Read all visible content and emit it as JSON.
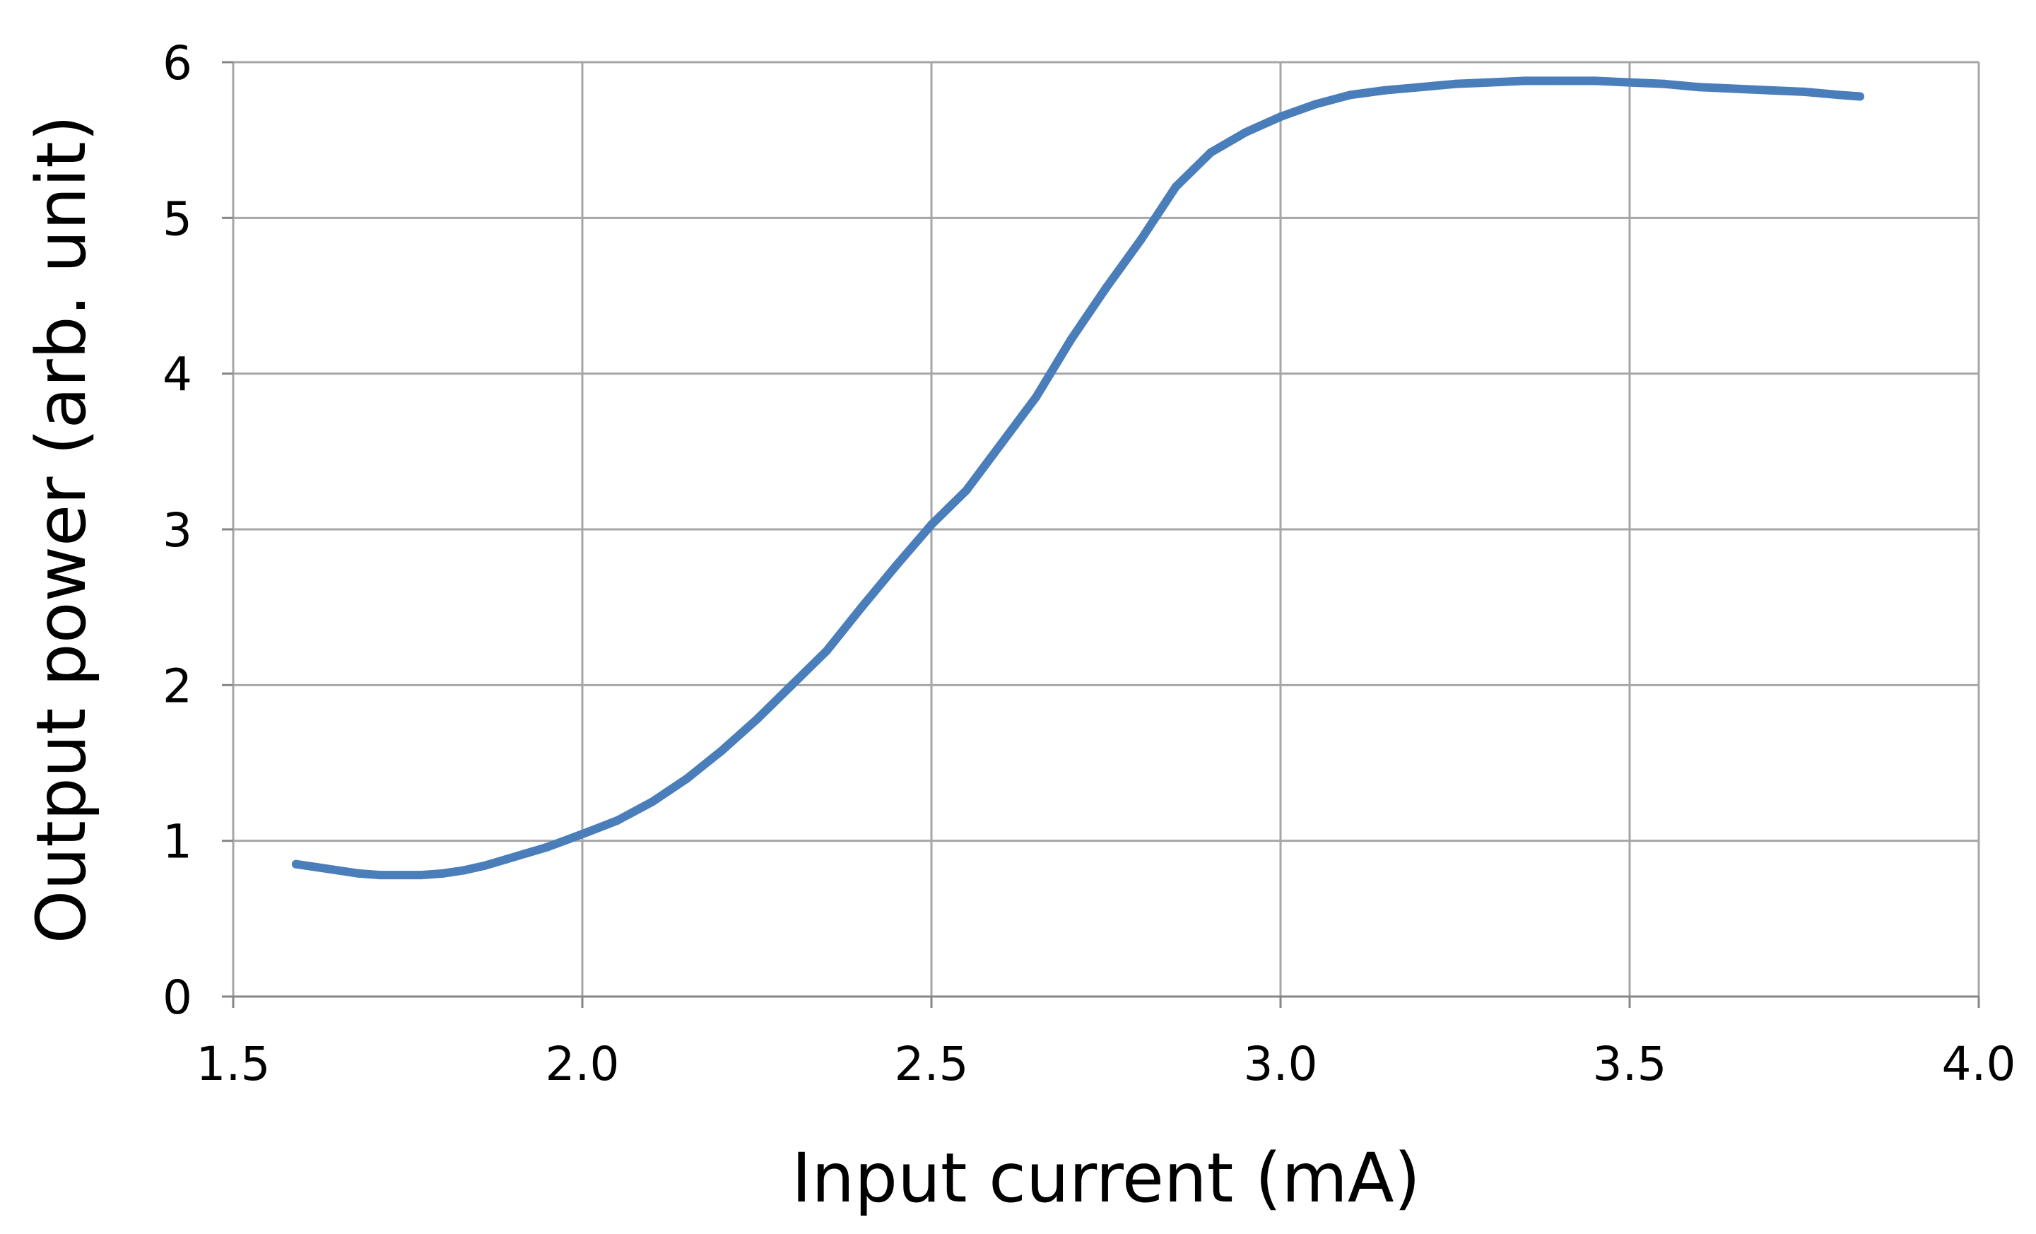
{
  "chart_data": {
    "type": "line",
    "title": "",
    "xlabel": "Input current (mA)",
    "ylabel": "Output power (arb. unit)",
    "xlim": [
      1.5,
      4.0
    ],
    "ylim": [
      0,
      6
    ],
    "xticks": [
      1.5,
      2.0,
      2.5,
      3.0,
      3.5,
      4.0
    ],
    "xtick_labels": [
      "1.5",
      "2.0",
      "2.5",
      "3.0",
      "3.5",
      "4.0"
    ],
    "yticks": [
      0,
      1,
      2,
      3,
      4,
      5,
      6
    ],
    "ytick_labels": [
      "0",
      "1",
      "2",
      "3",
      "4",
      "5",
      "6"
    ],
    "grid": true,
    "legend": "none",
    "series": [
      {
        "color": "#4a7ebb",
        "x": [
          1.59,
          1.62,
          1.65,
          1.68,
          1.71,
          1.74,
          1.77,
          1.8,
          1.83,
          1.86,
          1.89,
          1.92,
          1.95,
          1.98,
          2.01,
          2.05,
          2.1,
          2.15,
          2.2,
          2.25,
          2.3,
          2.35,
          2.4,
          2.45,
          2.5,
          2.55,
          2.6,
          2.65,
          2.7,
          2.75,
          2.8,
          2.85,
          2.9,
          2.95,
          3.0,
          3.05,
          3.1,
          3.15,
          3.2,
          3.25,
          3.3,
          3.35,
          3.4,
          3.45,
          3.5,
          3.55,
          3.6,
          3.65,
          3.7,
          3.75,
          3.8,
          3.83
        ],
        "y": [
          0.85,
          0.83,
          0.81,
          0.79,
          0.78,
          0.78,
          0.78,
          0.79,
          0.81,
          0.84,
          0.88,
          0.92,
          0.96,
          1.01,
          1.06,
          1.13,
          1.25,
          1.4,
          1.58,
          1.78,
          2.0,
          2.22,
          2.5,
          2.77,
          3.03,
          3.25,
          3.55,
          3.85,
          4.22,
          4.55,
          4.86,
          5.2,
          5.42,
          5.55,
          5.65,
          5.73,
          5.79,
          5.82,
          5.84,
          5.86,
          5.87,
          5.88,
          5.88,
          5.88,
          5.87,
          5.86,
          5.84,
          5.83,
          5.82,
          5.81,
          5.79,
          5.78
        ]
      }
    ]
  }
}
